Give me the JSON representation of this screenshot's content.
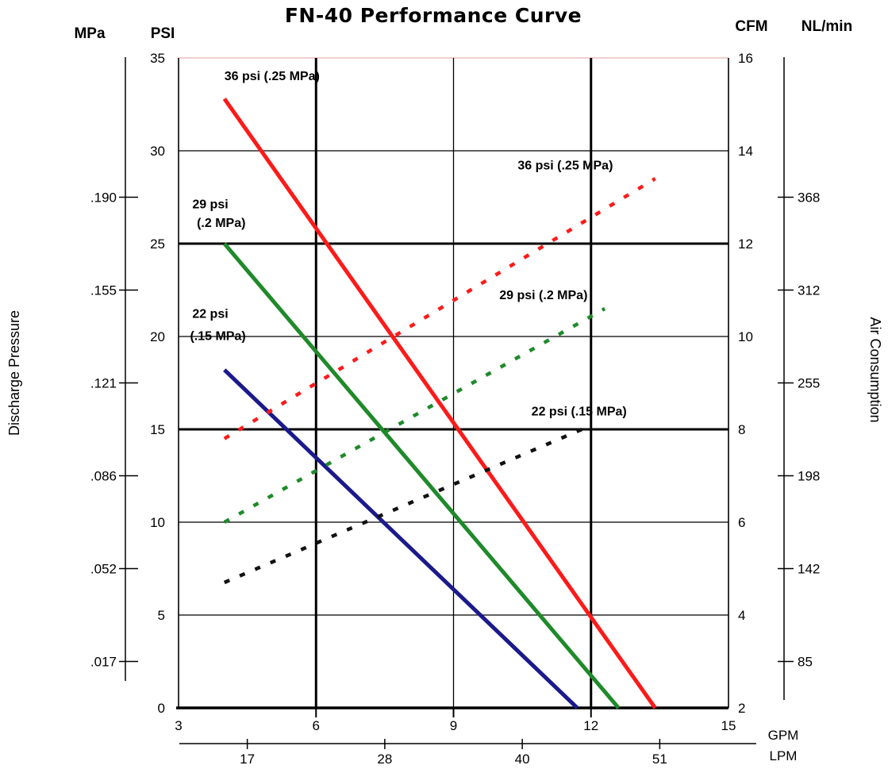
{
  "chart_data": {
    "type": "line",
    "title": "FN-40 Performance Curve",
    "x_axis": {
      "label": "GPM",
      "ticks": [
        3,
        6,
        9,
        12,
        15
      ],
      "range": [
        3,
        15
      ],
      "secondary_label": "LPM",
      "secondary_ticks": [
        {
          "value": 4.5,
          "label": "17"
        },
        {
          "value": 7.5,
          "label": "28"
        },
        {
          "value": 10.5,
          "label": "40"
        },
        {
          "value": 13.5,
          "label": "51"
        }
      ]
    },
    "y_axis_left": {
      "label": "Discharge Pressure",
      "unit": "PSI",
      "ticks": [
        0,
        5,
        10,
        15,
        20,
        25,
        30,
        35
      ],
      "range": [
        0,
        35
      ],
      "secondary_unit": "MPa",
      "secondary_ticks": [
        {
          "value": 2.5,
          "label": ".017"
        },
        {
          "value": 7.5,
          "label": ".052"
        },
        {
          "value": 12.5,
          "label": ".086"
        },
        {
          "value": 17.5,
          "label": ".121"
        },
        {
          "value": 22.5,
          "label": ".155"
        },
        {
          "value": 27.5,
          "label": ".190"
        }
      ]
    },
    "y_axis_right": {
      "label": "Air Consumption",
      "unit": "CFM",
      "ticks": [
        2,
        4,
        6,
        8,
        10,
        12,
        14,
        16
      ],
      "range": [
        2,
        16
      ],
      "secondary_unit": "NL/min",
      "secondary_ticks": [
        {
          "value": 3,
          "label": "85"
        },
        {
          "value": 5,
          "label": "142"
        },
        {
          "value": 7,
          "label": "198"
        },
        {
          "value": 9,
          "label": "255"
        },
        {
          "value": 11,
          "label": "312"
        },
        {
          "value": 13,
          "label": "368"
        }
      ]
    },
    "series": [
      {
        "color": "#ff1a1a",
        "axis": "left",
        "style": "solid",
        "points": [
          [
            4.0,
            32.8
          ],
          [
            13.4,
            0.0
          ]
        ]
      },
      {
        "color": "#1f8a2a",
        "axis": "left",
        "style": "solid",
        "points": [
          [
            4.0,
            25.0
          ],
          [
            12.6,
            0.0
          ]
        ]
      },
      {
        "color": "#1a1a8c",
        "axis": "left",
        "style": "solid",
        "points": [
          [
            4.0,
            18.2
          ],
          [
            11.7,
            0.0
          ]
        ]
      },
      {
        "color": "#ff1a1a",
        "axis": "right",
        "style": "dashed",
        "points": [
          [
            4.0,
            7.8
          ],
          [
            13.4,
            13.4
          ]
        ]
      },
      {
        "color": "#1f8a2a",
        "axis": "right",
        "style": "dashed",
        "points": [
          [
            4.0,
            6.0
          ],
          [
            12.3,
            10.6
          ]
        ]
      },
      {
        "color": "#111111",
        "axis": "right",
        "style": "dashed",
        "points": [
          [
            4.0,
            4.7
          ],
          [
            11.8,
            8.0
          ]
        ]
      }
    ],
    "annotations": [
      {
        "text": "36 psi (.25 MPa)",
        "x": 4.0,
        "y": 33.8,
        "axis": "left"
      },
      {
        "text": "29 psi",
        "x": 3.3,
        "y": 26.9,
        "axis": "left"
      },
      {
        "text": "(.2 MPa)",
        "x": 3.4,
        "y": 25.9,
        "axis": "left"
      },
      {
        "text": "22 psi",
        "x": 3.3,
        "y": 21.0,
        "axis": "left"
      },
      {
        "text": "(.15 MPa)",
        "x": 3.25,
        "y": 19.8,
        "axis": "left"
      },
      {
        "text": "36 psi (.25 MPa)",
        "x": 10.4,
        "y": 13.6,
        "axis": "right"
      },
      {
        "text": "29 psi (.2 MPa)",
        "x": 10.0,
        "y": 10.8,
        "axis": "right"
      },
      {
        "text": "22 psi (.15 MPa)",
        "x": 10.7,
        "y": 8.3,
        "axis": "right"
      }
    ]
  }
}
